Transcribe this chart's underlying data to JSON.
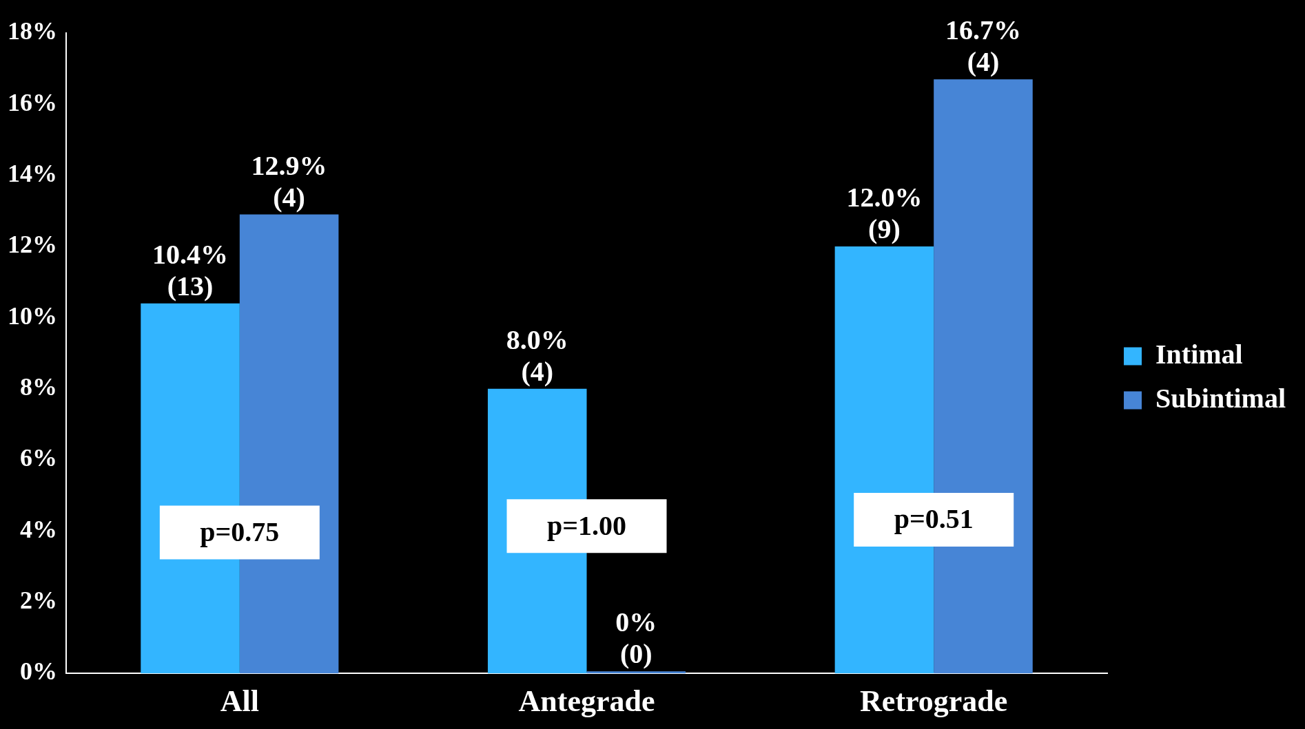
{
  "chart_data": {
    "type": "bar",
    "categories": [
      "All",
      "Antegrade",
      "Retrograde"
    ],
    "series": [
      {
        "name": "Intimal",
        "color": "#33b5ff",
        "values": [
          10.4,
          8.0,
          12.0
        ],
        "value_labels": [
          "10.4%\n(13)",
          "8.0%\n(4)",
          "12.0%\n(9)"
        ]
      },
      {
        "name": "Subintimal",
        "color": "#4785d6",
        "values": [
          12.9,
          0,
          16.7
        ],
        "value_labels": [
          "12.9%\n(4)",
          "0%\n(0)",
          "16.7%\n(4)"
        ]
      }
    ],
    "ylim": [
      0,
      18
    ],
    "yticks": [
      {
        "value": 0,
        "label": "0%"
      },
      {
        "value": 2,
        "label": "2%"
      },
      {
        "value": 4,
        "label": "4%"
      },
      {
        "value": 6,
        "label": "6%"
      },
      {
        "value": 8,
        "label": "8%"
      },
      {
        "value": 10,
        "label": "10%"
      },
      {
        "value": 12,
        "label": "12%"
      },
      {
        "value": 14,
        "label": "14%"
      },
      {
        "value": 16,
        "label": "16%"
      },
      {
        "value": 18,
        "label": "18%"
      }
    ],
    "grid": false,
    "legend": "right",
    "annotations": [
      "p=0.75",
      "p=1.00",
      "p=0.51"
    ]
  }
}
